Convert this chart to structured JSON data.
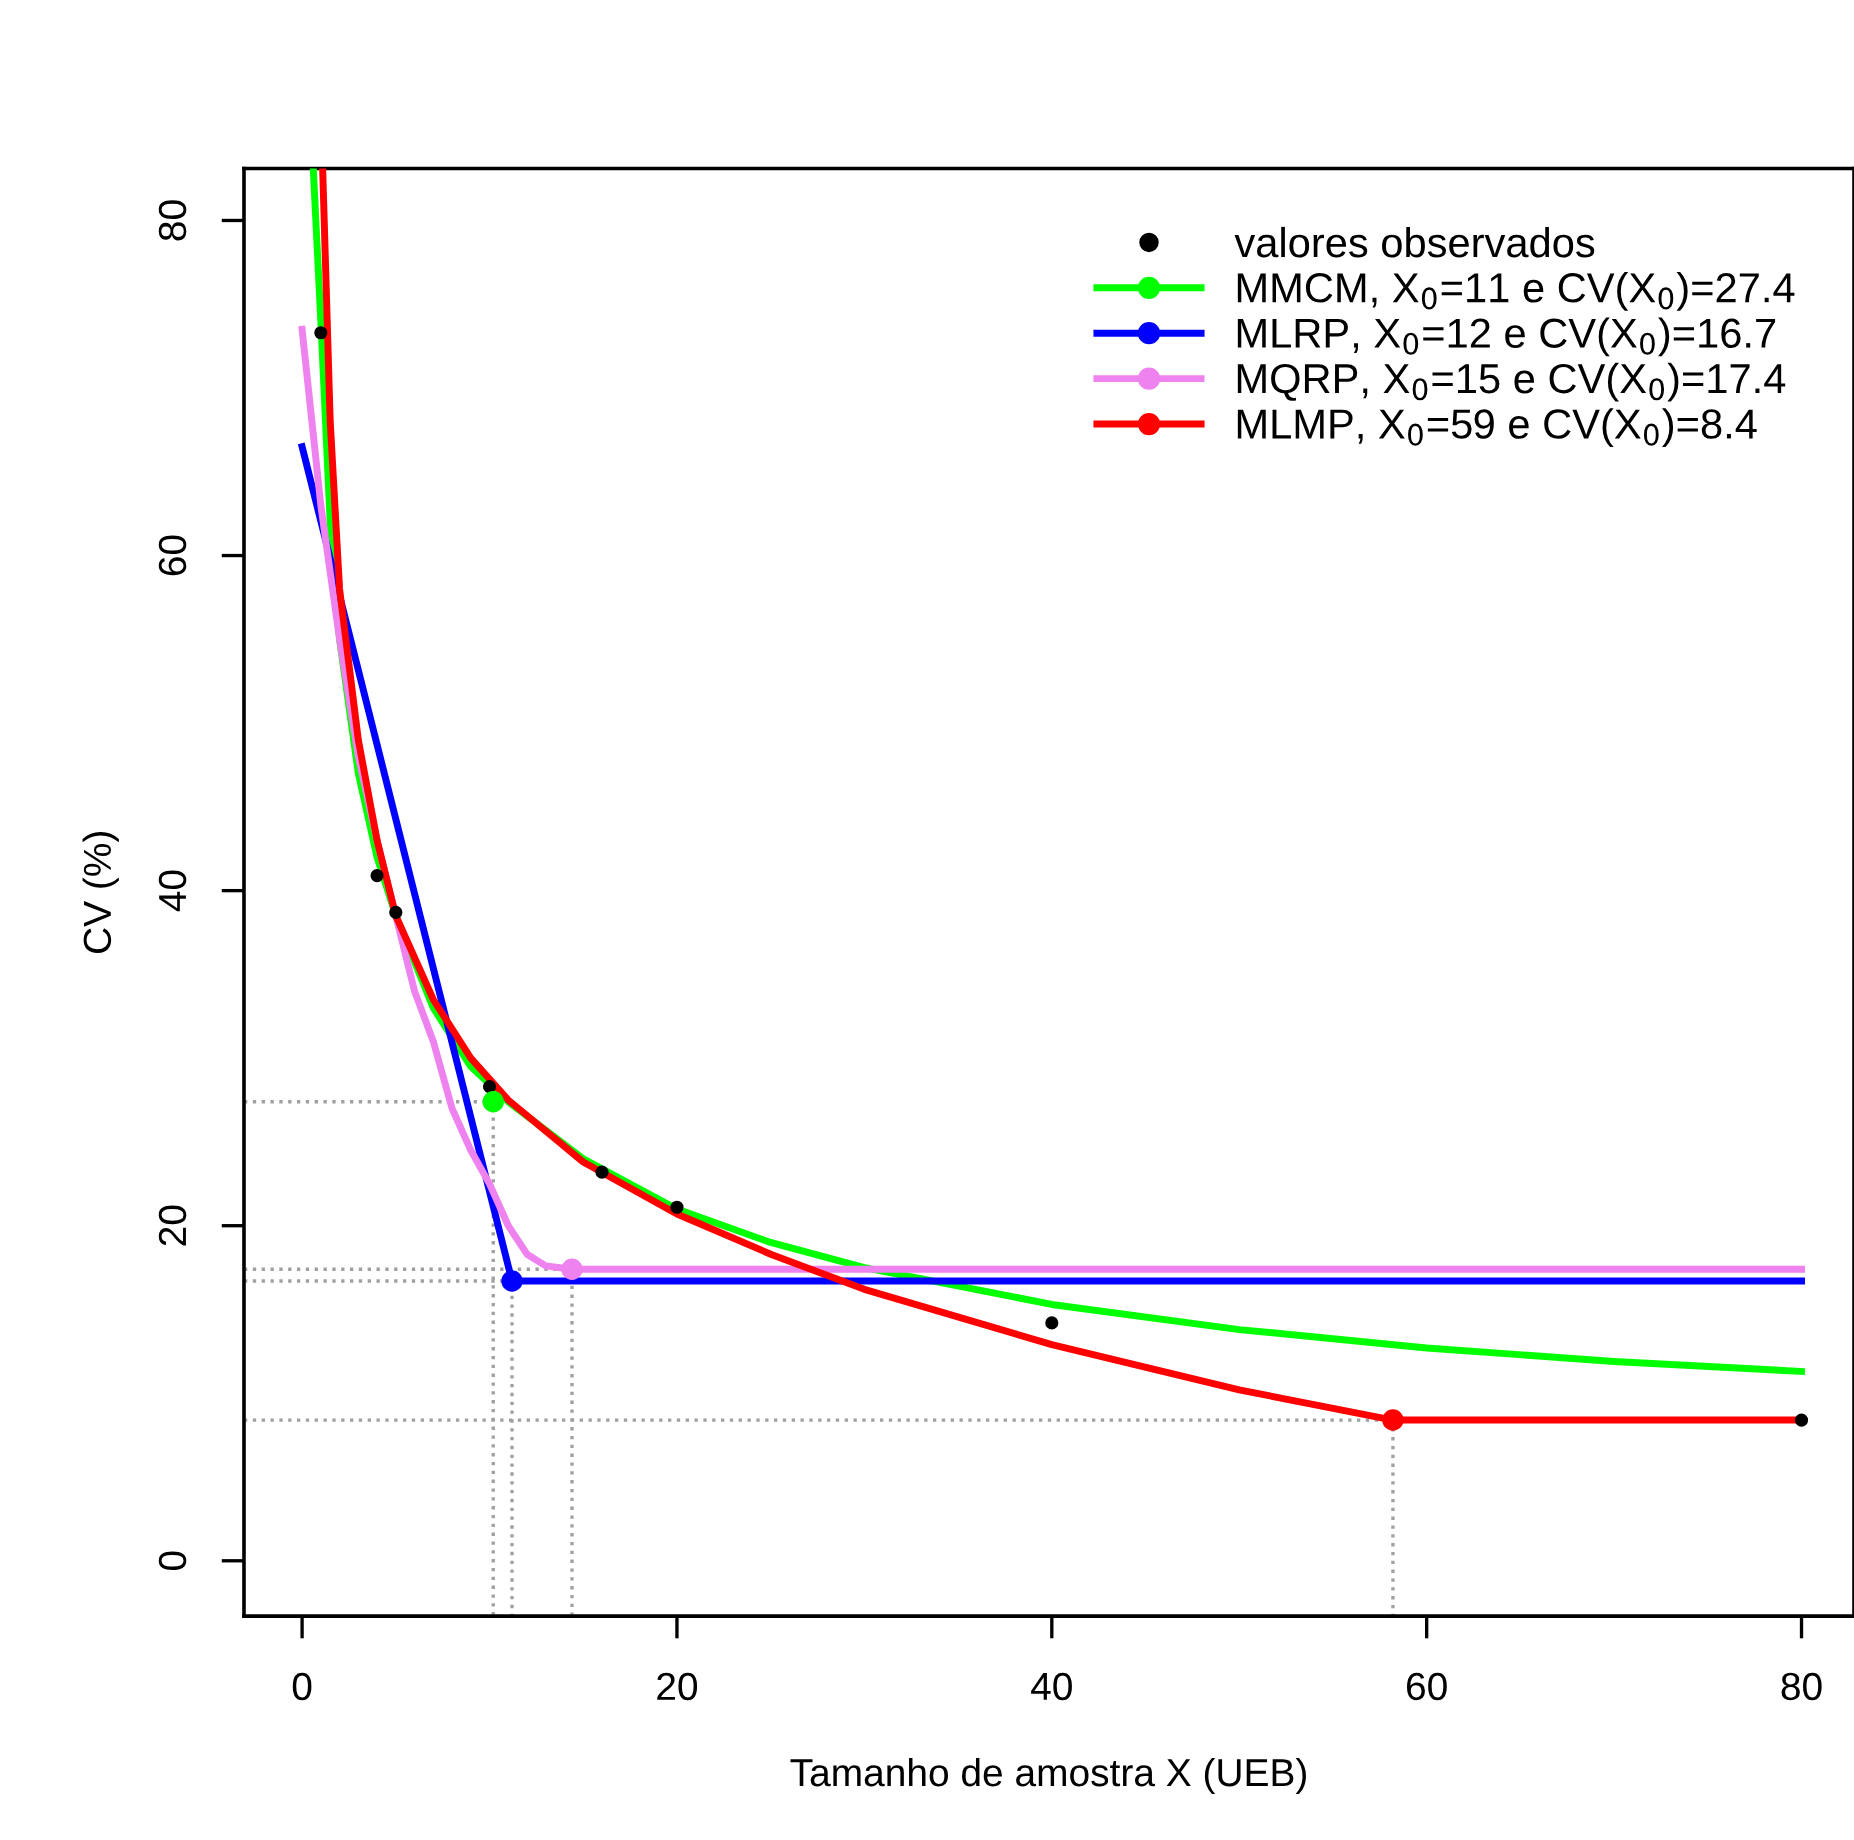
{
  "chart_data": {
    "type": "line",
    "xlabel": "Tamanho de amostra X (UEB)",
    "ylabel": "CV (%)",
    "xlim": [
      -3.1,
      82.8
    ],
    "ylim": [
      -3.3,
      83.1
    ],
    "xticks": [
      0,
      20,
      40,
      60,
      80
    ],
    "yticks": [
      0,
      20,
      40,
      60,
      80
    ],
    "grid": false,
    "legend": "top right",
    "series": [
      {
        "color": "#a0a0a0",
        "line_style": "dotted",
        "x": [
          -3.1,
          10.2,
          10.2
        ],
        "values": [
          27.4,
          27.4,
          -3.3
        ]
      },
      {
        "color": "#a0a0a0",
        "line_style": "dotted",
        "x": [
          -3.1,
          11.2,
          11.2
        ],
        "values": [
          16.7,
          16.7,
          -3.3
        ]
      },
      {
        "color": "#a0a0a0",
        "line_style": "dotted",
        "x": [
          -3.1,
          14.4,
          14.4
        ],
        "values": [
          17.4,
          17.4,
          -3.3
        ]
      },
      {
        "color": "#a0a0a0",
        "line_style": "dotted",
        "x": [
          -3.1,
          58.2,
          58.2
        ],
        "values": [
          8.4,
          8.4,
          -3.3
        ]
      },
      {
        "type": "scatter",
        "name": "valores observados",
        "color": "#000000",
        "marker": "circle",
        "x": [
          1,
          4,
          5,
          10,
          16,
          20,
          40,
          80
        ],
        "values": [
          73.3,
          40.9,
          38.7,
          28.3,
          23.2,
          21.1,
          14.2,
          8.4
        ]
      },
      {
        "name": "MMCM, X$_{0}$=11 e CV(X$_{0}$)=27.4",
        "color": "#00ff00",
        "x": [
          0.6,
          1,
          1.5,
          2,
          3,
          4,
          5,
          7,
          9,
          11,
          15,
          20,
          25,
          30,
          40,
          50,
          60,
          70,
          80
        ],
        "values": [
          83,
          74,
          62,
          55,
          47,
          42,
          38.5,
          33,
          29.5,
          27.4,
          24,
          21,
          19,
          17.5,
          15.3,
          13.8,
          12.7,
          11.9,
          11.3
        ]
      },
      {
        "name": "MLRP, X$_{0}$=12 e CV(X$_{0}$)=16.7",
        "color": "#0000ff",
        "x": [
          0,
          11.2,
          80
        ],
        "values": [
          66.5,
          16.7,
          16.7
        ]
      },
      {
        "name": "MQRP, X$_{0}$=15 e CV(X$_{0}$)=17.4",
        "color": "#ee82ee",
        "x": [
          0,
          1,
          2,
          3,
          4,
          5,
          6,
          7,
          8,
          9,
          10,
          11,
          12,
          13,
          14.4,
          80
        ],
        "values": [
          73.5,
          63,
          55,
          48,
          43,
          38.5,
          34,
          31,
          27,
          24.5,
          22.5,
          20,
          18.3,
          17.6,
          17.4,
          17.4
        ]
      },
      {
        "name": "MLMP, X$_{0}$=59 e CV(X$_{0}$)=8.4",
        "color": "#ff0000",
        "x": [
          1.1,
          1.5,
          2,
          3,
          4,
          5,
          7,
          9,
          11,
          15,
          20,
          25,
          30,
          40,
          50,
          58.2,
          80
        ],
        "values": [
          83,
          68,
          58,
          49,
          43,
          38.5,
          33.5,
          30,
          27.5,
          23.8,
          20.7,
          18.3,
          16.2,
          12.9,
          10.2,
          8.4,
          8.4
        ]
      },
      {
        "type": "scatter",
        "color": "#00ff00",
        "marker": "circle",
        "x": [
          10.2
        ],
        "values": [
          27.4
        ]
      },
      {
        "type": "scatter",
        "color": "#0000ff",
        "marker": "circle",
        "x": [
          11.2
        ],
        "values": [
          16.7
        ]
      },
      {
        "type": "scatter",
        "color": "#ee82ee",
        "marker": "circle",
        "x": [
          14.4
        ],
        "values": [
          17.4
        ]
      },
      {
        "type": "scatter",
        "color": "#ff0000",
        "marker": "circle",
        "x": [
          58.2
        ],
        "values": [
          8.4
        ]
      }
    ]
  }
}
